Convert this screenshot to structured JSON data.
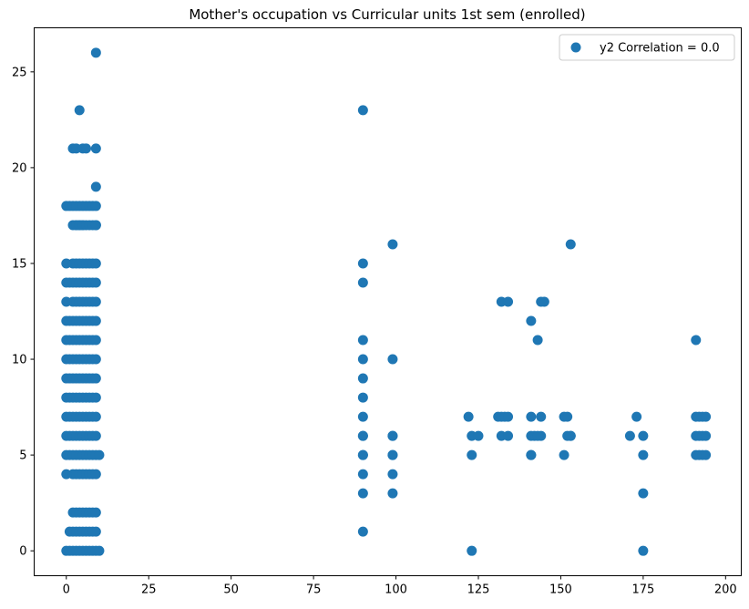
{
  "chart_data": {
    "type": "scatter",
    "title": "Mother's occupation vs Curricular units 1st sem (enrolled)",
    "xlabel": "",
    "ylabel": "",
    "xlim": [
      -9.75,
      204.75
    ],
    "ylim": [
      -1.3,
      27.3
    ],
    "xticks": [
      0,
      25,
      50,
      75,
      100,
      125,
      150,
      175,
      200
    ],
    "yticks": [
      0,
      5,
      10,
      15,
      20,
      25
    ],
    "grid": false,
    "legend": "top-right",
    "colors": {
      "series": "#1f77b4"
    },
    "series": [
      {
        "name": "y2 Correlation = 0.0",
        "x": [
          0,
          1,
          2,
          3,
          4,
          5,
          6,
          7,
          8,
          9,
          10,
          0,
          1,
          2,
          3,
          4,
          5,
          6,
          7,
          8,
          9,
          10,
          0,
          1,
          2,
          3,
          4,
          5,
          6,
          7,
          8,
          9,
          0,
          1,
          2,
          3,
          4,
          5,
          6,
          7,
          8,
          9,
          0,
          1,
          2,
          3,
          4,
          5,
          6,
          7,
          8,
          9,
          0,
          1,
          2,
          3,
          4,
          5,
          6,
          7,
          8,
          9,
          0,
          1,
          2,
          3,
          4,
          5,
          6,
          7,
          8,
          9,
          0,
          1,
          2,
          3,
          4,
          5,
          6,
          7,
          8,
          9,
          0,
          1,
          2,
          3,
          4,
          5,
          6,
          7,
          8,
          9,
          0,
          1,
          2,
          3,
          4,
          5,
          6,
          7,
          8,
          9,
          0,
          2,
          3,
          4,
          5,
          6,
          7,
          8,
          9,
          0,
          2,
          3,
          4,
          5,
          6,
          7,
          8,
          9,
          0,
          2,
          3,
          4,
          5,
          6,
          7,
          8,
          9,
          2,
          3,
          4,
          5,
          6,
          7,
          8,
          9,
          1,
          2,
          3,
          4,
          5,
          6,
          7,
          8,
          9,
          0,
          1,
          2,
          3,
          4,
          5,
          6,
          7,
          8,
          9,
          3,
          4,
          5,
          9,
          2,
          3,
          4,
          5,
          6,
          7,
          8,
          9,
          9,
          2,
          3,
          5,
          6,
          9,
          4,
          9,
          90,
          90,
          90,
          90,
          90,
          90,
          90,
          90,
          90,
          90,
          90,
          90,
          90,
          90,
          90,
          99,
          99,
          99,
          99,
          99,
          99,
          99,
          99,
          122,
          123,
          123,
          123,
          125,
          131,
          132,
          133,
          132,
          134,
          134,
          141,
          141,
          141,
          142,
          141,
          143,
          144,
          144,
          145,
          151,
          151,
          152,
          152,
          153,
          153,
          171,
          173,
          175,
          175,
          175,
          175,
          191,
          192,
          193,
          194,
          191,
          192,
          193,
          194,
          191,
          192,
          193,
          194,
          191,
          132,
          134,
          144,
          141,
          143,
          153
        ],
        "y": [
          0,
          0,
          0,
          0,
          0,
          0,
          0,
          0,
          0,
          0,
          0,
          5,
          5,
          5,
          5,
          5,
          5,
          5,
          5,
          5,
          5,
          5,
          6,
          6,
          6,
          6,
          6,
          6,
          6,
          6,
          6,
          6,
          7,
          7,
          7,
          7,
          7,
          7,
          7,
          7,
          7,
          7,
          8,
          8,
          8,
          8,
          8,
          8,
          8,
          8,
          8,
          8,
          9,
          9,
          9,
          9,
          9,
          9,
          9,
          9,
          9,
          9,
          10,
          10,
          10,
          10,
          10,
          10,
          10,
          10,
          10,
          10,
          11,
          11,
          11,
          11,
          11,
          11,
          11,
          11,
          11,
          11,
          12,
          12,
          12,
          12,
          12,
          12,
          12,
          12,
          12,
          12,
          14,
          14,
          14,
          14,
          14,
          14,
          14,
          14,
          14,
          14,
          4,
          4,
          4,
          4,
          4,
          4,
          4,
          4,
          4,
          13,
          13,
          13,
          13,
          13,
          13,
          13,
          13,
          13,
          15,
          15,
          15,
          15,
          15,
          15,
          15,
          15,
          15,
          2,
          2,
          2,
          2,
          2,
          2,
          2,
          2,
          1,
          1,
          1,
          1,
          1,
          1,
          1,
          1,
          1,
          18,
          18,
          18,
          18,
          18,
          18,
          18,
          18,
          18,
          18,
          17,
          17,
          17,
          17,
          17,
          17,
          17,
          17,
          17,
          17,
          17,
          17,
          19,
          21,
          21,
          21,
          21,
          21,
          23,
          26,
          1,
          3,
          4,
          5,
          6,
          7,
          8,
          9,
          10,
          11,
          14,
          15,
          23,
          5,
          6,
          3,
          4,
          5,
          6,
          10,
          16,
          5,
          6,
          7,
          5,
          0,
          6,
          6,
          7,
          7,
          7,
          6,
          6,
          7,
          5,
          6,
          7,
          6,
          12,
          11,
          6,
          7,
          13,
          5,
          7,
          6,
          7,
          6,
          16,
          6,
          7,
          0,
          3,
          5,
          6,
          5,
          5,
          5,
          5,
          6,
          6,
          6,
          6,
          7,
          7,
          7,
          7,
          11,
          13,
          13,
          13,
          5,
          6,
          6
        ]
      }
    ]
  }
}
